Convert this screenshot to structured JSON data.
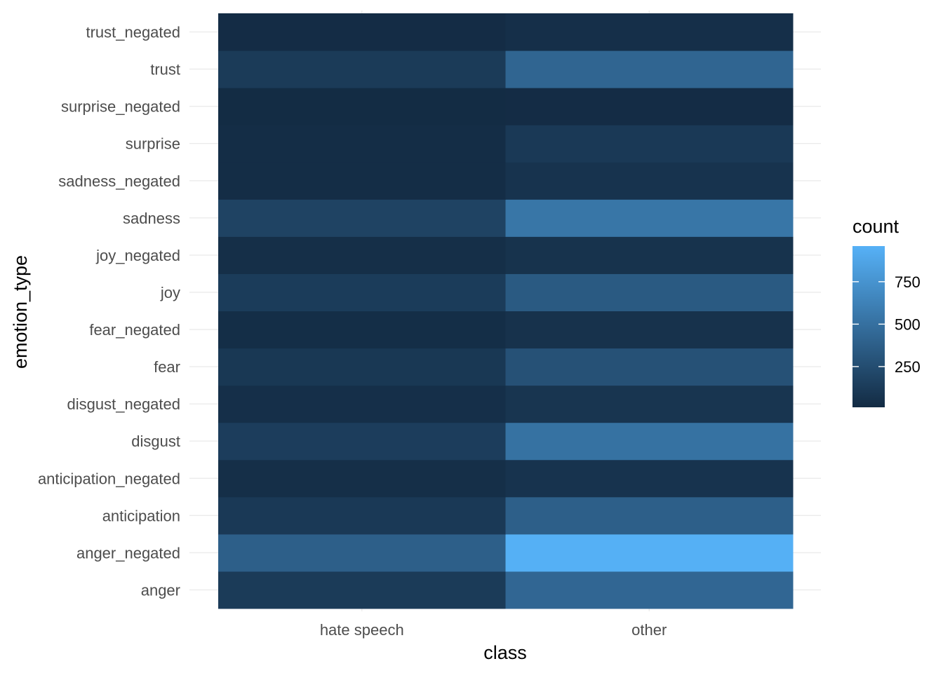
{
  "chart_data": {
    "type": "heatmap",
    "xlabel": "class",
    "ylabel": "emotion_type",
    "x_categories": [
      "hate speech",
      "other"
    ],
    "y_categories": [
      "anger",
      "anger_negated",
      "anticipation",
      "anticipation_negated",
      "disgust",
      "disgust_negated",
      "fear",
      "fear_negated",
      "joy",
      "joy_negated",
      "sadness",
      "sadness_negated",
      "surprise",
      "surprise_negated",
      "trust",
      "trust_negated"
    ],
    "values": [
      [
        120,
        430
      ],
      [
        380,
        950
      ],
      [
        110,
        380
      ],
      [
        35,
        70
      ],
      [
        140,
        510
      ],
      [
        40,
        80
      ],
      [
        100,
        280
      ],
      [
        30,
        60
      ],
      [
        130,
        340
      ],
      [
        35,
        65
      ],
      [
        180,
        540
      ],
      [
        25,
        70
      ],
      [
        25,
        110
      ],
      [
        15,
        20
      ],
      [
        120,
        420
      ],
      [
        20,
        40
      ]
    ],
    "legend": {
      "title": "count",
      "ticks": [
        250,
        500,
        750
      ],
      "tick_labels": [
        "250",
        "500",
        "750"
      ],
      "position": "right"
    },
    "color_scale": {
      "low": "#132B43",
      "high": "#56B1F7",
      "min": 10,
      "max": 960
    },
    "grid": true
  }
}
